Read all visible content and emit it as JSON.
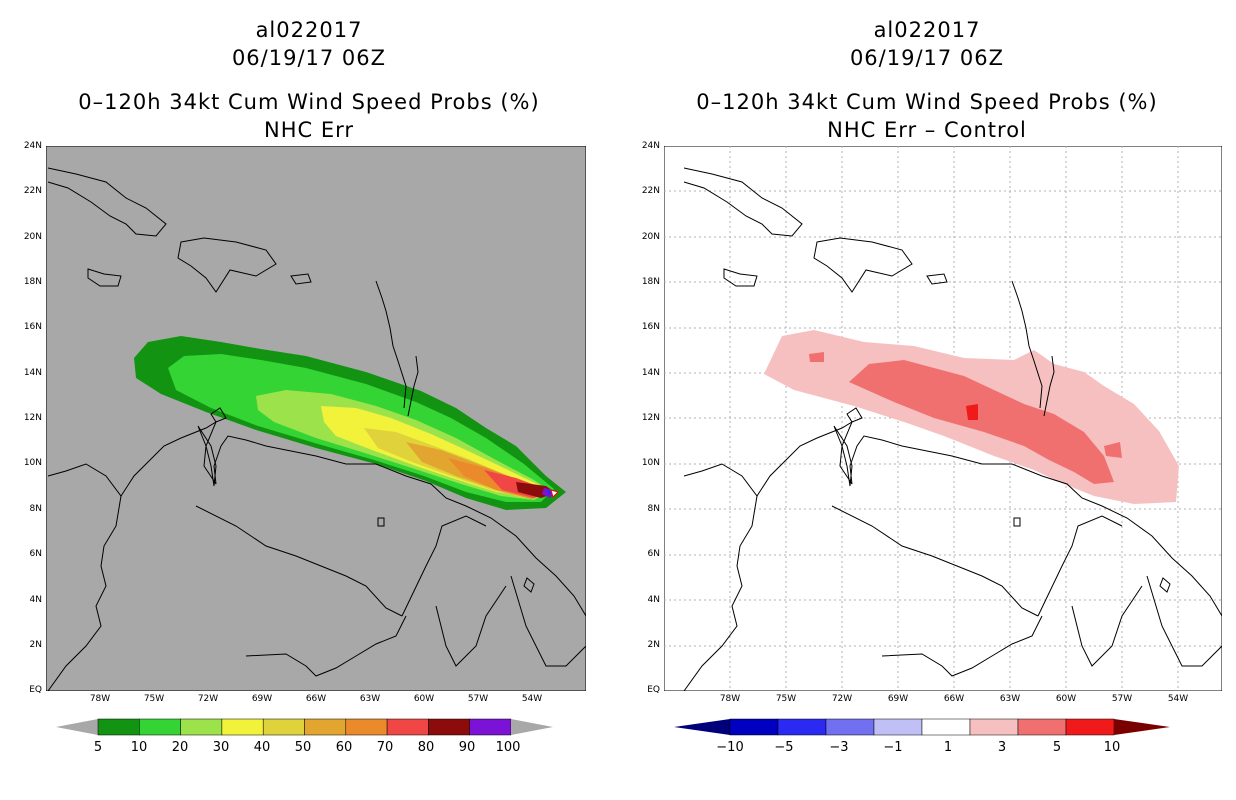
{
  "left": {
    "title_storm": "al022017",
    "title_date": "06/19/17 06Z",
    "title_product": "0–120h 34kt Cum Wind Speed Probs (%)",
    "title_sub": "NHC Err",
    "background": "#a8a8a8",
    "colorbar": {
      "colors": [
        "#129412",
        "#34d434",
        "#9ce34b",
        "#f2f23a",
        "#e0d23a",
        "#e2a630",
        "#ea8a2a",
        "#f04646",
        "#8c0c0c",
        "#7b12d6"
      ],
      "labels": [
        "5",
        "10",
        "20",
        "30",
        "40",
        "50",
        "60",
        "70",
        "80",
        "90",
        "100"
      ]
    }
  },
  "right": {
    "title_storm": "al022017",
    "title_date": "06/19/17 06Z",
    "title_product": "0–120h 34kt Cum Wind Speed Probs (%)",
    "title_sub": "NHC Err – Control",
    "background": "#ffffff",
    "colorbar": {
      "colors": [
        "#0000c0",
        "#2a2af2",
        "#7070f0",
        "#c0c0f6",
        "#ffffff",
        "#f6c0c0",
        "#f07070",
        "#f01a1a"
      ],
      "left_arrow": "#00007a",
      "right_arrow": "#7a0000",
      "labels": [
        "−10",
        "−5",
        "−3",
        "−1",
        "1",
        "3",
        "5",
        "10"
      ]
    }
  },
  "axes": {
    "lat_labels": [
      "24N",
      "22N",
      "20N",
      "18N",
      "16N",
      "14N",
      "12N",
      "10N",
      "8N",
      "6N",
      "4N",
      "2N",
      "EQ"
    ],
    "lon_labels": [
      "78W",
      "75W",
      "72W",
      "69W",
      "66W",
      "63W",
      "60W",
      "57W",
      "54W"
    ]
  }
}
